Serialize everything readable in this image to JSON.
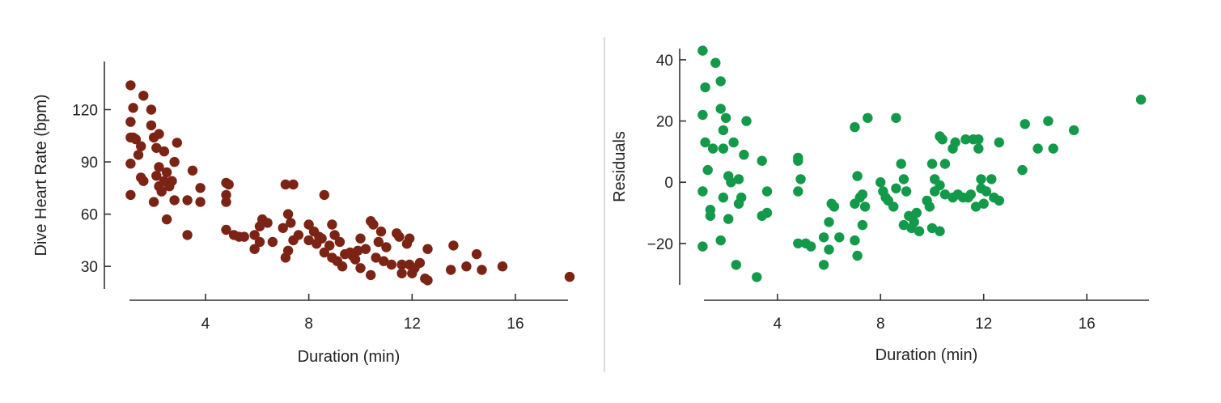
{
  "chart_data": [
    {
      "type": "scatter",
      "xlabel": "Duration (min)",
      "ylabel": "Dive Heart Rate (bpm)",
      "xlim": [
        0.9,
        18.6
      ],
      "ylim": [
        18,
        143
      ],
      "xticks": [
        4,
        8,
        12,
        16
      ],
      "yticks": [
        30,
        60,
        90,
        120
      ],
      "color": "#7B2416",
      "points": [
        [
          1.1,
          134
        ],
        [
          1.2,
          121
        ],
        [
          1.1,
          113
        ],
        [
          1.1,
          104
        ],
        [
          1.2,
          104
        ],
        [
          1.3,
          103
        ],
        [
          1.1,
          89
        ],
        [
          1.1,
          71
        ],
        [
          1.6,
          128
        ],
        [
          1.5,
          99
        ],
        [
          1.4,
          94
        ],
        [
          1.5,
          81
        ],
        [
          1.6,
          79
        ],
        [
          1.9,
          120
        ],
        [
          1.9,
          111
        ],
        [
          2.0,
          104
        ],
        [
          2.2,
          106
        ],
        [
          2.1,
          98
        ],
        [
          2.1,
          82
        ],
        [
          2.2,
          87
        ],
        [
          2.0,
          67
        ],
        [
          2.4,
          96
        ],
        [
          2.5,
          84
        ],
        [
          2.4,
          79
        ],
        [
          2.3,
          73
        ],
        [
          2.2,
          76
        ],
        [
          2.6,
          76
        ],
        [
          2.7,
          79
        ],
        [
          2.8,
          90
        ],
        [
          2.9,
          101
        ],
        [
          2.8,
          68
        ],
        [
          2.5,
          57
        ],
        [
          3.3,
          48
        ],
        [
          3.3,
          68
        ],
        [
          3.5,
          85
        ],
        [
          3.8,
          75
        ],
        [
          3.8,
          67
        ],
        [
          4.8,
          78
        ],
        [
          4.9,
          77
        ],
        [
          4.8,
          71
        ],
        [
          4.8,
          67
        ],
        [
          4.8,
          51
        ],
        [
          5.1,
          48
        ],
        [
          5.3,
          47
        ],
        [
          5.5,
          47
        ],
        [
          5.9,
          48
        ],
        [
          6.2,
          57
        ],
        [
          6.1,
          53
        ],
        [
          6.4,
          55
        ],
        [
          6.1,
          44
        ],
        [
          5.9,
          40
        ],
        [
          6.6,
          44
        ],
        [
          7.0,
          52
        ],
        [
          7.1,
          77
        ],
        [
          7.2,
          60
        ],
        [
          7.4,
          77
        ],
        [
          7.1,
          35
        ],
        [
          7.2,
          39
        ],
        [
          7.4,
          45
        ],
        [
          7.3,
          55
        ],
        [
          7.6,
          48
        ],
        [
          8.0,
          54
        ],
        [
          8.0,
          45
        ],
        [
          8.2,
          50
        ],
        [
          8.4,
          47
        ],
        [
          8.3,
          43
        ],
        [
          8.5,
          46
        ],
        [
          8.6,
          38
        ],
        [
          8.6,
          71
        ],
        [
          8.8,
          42
        ],
        [
          8.9,
          54
        ],
        [
          9.0,
          48
        ],
        [
          9.2,
          44
        ],
        [
          8.9,
          35
        ],
        [
          9.1,
          33
        ],
        [
          9.3,
          30
        ],
        [
          9.4,
          37
        ],
        [
          9.6,
          38
        ],
        [
          9.7,
          36
        ],
        [
          9.8,
          34
        ],
        [
          9.9,
          39
        ],
        [
          10.0,
          29
        ],
        [
          10.0,
          46
        ],
        [
          10.2,
          40
        ],
        [
          10.4,
          56
        ],
        [
          10.5,
          54
        ],
        [
          10.4,
          25
        ],
        [
          10.6,
          35
        ],
        [
          10.7,
          44
        ],
        [
          10.8,
          50
        ],
        [
          10.9,
          33
        ],
        [
          11.0,
          41
        ],
        [
          11.2,
          31
        ],
        [
          11.4,
          49
        ],
        [
          11.5,
          47
        ],
        [
          11.6,
          31
        ],
        [
          11.6,
          26
        ],
        [
          11.9,
          46
        ],
        [
          11.9,
          31
        ],
        [
          11.8,
          43
        ],
        [
          12.0,
          26
        ],
        [
          12.1,
          29
        ],
        [
          12.3,
          32
        ],
        [
          12.5,
          23
        ],
        [
          12.6,
          22
        ],
        [
          12.6,
          40
        ],
        [
          13.5,
          28
        ],
        [
          13.6,
          42
        ],
        [
          14.1,
          30
        ],
        [
          14.5,
          37
        ],
        [
          14.7,
          28
        ],
        [
          15.5,
          30
        ],
        [
          18.1,
          24
        ]
      ]
    },
    {
      "type": "scatter",
      "xlabel": "Duration (min)",
      "ylabel": "Residuals",
      "xlim": [
        0.9,
        18.6
      ],
      "ylim": [
        -33,
        45
      ],
      "xticks": [
        4,
        8,
        12,
        16
      ],
      "yticks": [
        -20,
        0,
        20,
        40
      ],
      "color": "#12994A",
      "points": [
        [
          1.1,
          43
        ],
        [
          1.2,
          31
        ],
        [
          1.1,
          22
        ],
        [
          1.2,
          13
        ],
        [
          1.1,
          -3
        ],
        [
          1.1,
          -21
        ],
        [
          1.3,
          4
        ],
        [
          1.4,
          -9
        ],
        [
          1.4,
          -11
        ],
        [
          1.5,
          11
        ],
        [
          1.6,
          39
        ],
        [
          1.8,
          33
        ],
        [
          1.8,
          24
        ],
        [
          1.9,
          17
        ],
        [
          1.9,
          11
        ],
        [
          1.8,
          -19
        ],
        [
          2.0,
          21
        ],
        [
          2.1,
          2
        ],
        [
          2.1,
          -12
        ],
        [
          2.2,
          0
        ],
        [
          1.9,
          -5
        ],
        [
          2.3,
          13
        ],
        [
          2.5,
          1
        ],
        [
          2.5,
          -7
        ],
        [
          2.4,
          -27
        ],
        [
          2.6,
          -5
        ],
        [
          2.7,
          9
        ],
        [
          2.8,
          20
        ],
        [
          3.4,
          7
        ],
        [
          3.4,
          -11
        ],
        [
          3.6,
          -3
        ],
        [
          3.6,
          -10
        ],
        [
          3.2,
          -31
        ],
        [
          4.8,
          8
        ],
        [
          4.8,
          7
        ],
        [
          4.9,
          1
        ],
        [
          4.8,
          -3
        ],
        [
          4.8,
          -20
        ],
        [
          5.1,
          -20
        ],
        [
          5.3,
          -21
        ],
        [
          5.8,
          -18
        ],
        [
          5.8,
          -27
        ],
        [
          6.0,
          -13
        ],
        [
          6.1,
          -7
        ],
        [
          6.2,
          -8
        ],
        [
          6.0,
          -22
        ],
        [
          6.4,
          -18
        ],
        [
          7.0,
          -7
        ],
        [
          7.0,
          18
        ],
        [
          7.1,
          2
        ],
        [
          7.2,
          -5
        ],
        [
          7.3,
          -4
        ],
        [
          7.4,
          -8
        ],
        [
          7.5,
          21
        ],
        [
          7.1,
          -24
        ],
        [
          7.3,
          -14
        ],
        [
          7.0,
          -19
        ],
        [
          8.0,
          0
        ],
        [
          8.1,
          -3
        ],
        [
          8.2,
          -5
        ],
        [
          8.3,
          -6
        ],
        [
          8.5,
          -8
        ],
        [
          8.6,
          -2
        ],
        [
          8.6,
          21
        ],
        [
          8.8,
          6
        ],
        [
          8.9,
          1
        ],
        [
          9.0,
          -3
        ],
        [
          8.9,
          -14
        ],
        [
          9.1,
          -11
        ],
        [
          9.3,
          -13
        ],
        [
          9.4,
          -10
        ],
        [
          9.2,
          -15
        ],
        [
          9.5,
          -16
        ],
        [
          9.8,
          -6
        ],
        [
          9.9,
          -8
        ],
        [
          10.0,
          6
        ],
        [
          10.1,
          -3
        ],
        [
          10.1,
          1
        ],
        [
          10.0,
          -15
        ],
        [
          10.3,
          -1
        ],
        [
          10.3,
          15
        ],
        [
          10.4,
          14
        ],
        [
          10.5,
          6
        ],
        [
          10.3,
          -16
        ],
        [
          10.5,
          -4
        ],
        [
          10.8,
          -5
        ],
        [
          10.8,
          11
        ],
        [
          10.9,
          13
        ],
        [
          11.0,
          -4
        ],
        [
          11.2,
          -5
        ],
        [
          11.4,
          -5
        ],
        [
          11.3,
          14
        ],
        [
          11.5,
          -4
        ],
        [
          11.6,
          14
        ],
        [
          11.7,
          -8
        ],
        [
          11.8,
          11
        ],
        [
          11.8,
          14
        ],
        [
          11.9,
          1
        ],
        [
          11.9,
          -2
        ],
        [
          12.0,
          -7
        ],
        [
          12.1,
          -3
        ],
        [
          12.3,
          1
        ],
        [
          12.4,
          -5
        ],
        [
          12.6,
          -6
        ],
        [
          12.6,
          13
        ],
        [
          13.5,
          4
        ],
        [
          13.6,
          19
        ],
        [
          14.1,
          11
        ],
        [
          14.5,
          20
        ],
        [
          14.7,
          11
        ],
        [
          15.5,
          17
        ],
        [
          18.1,
          27
        ]
      ]
    }
  ]
}
